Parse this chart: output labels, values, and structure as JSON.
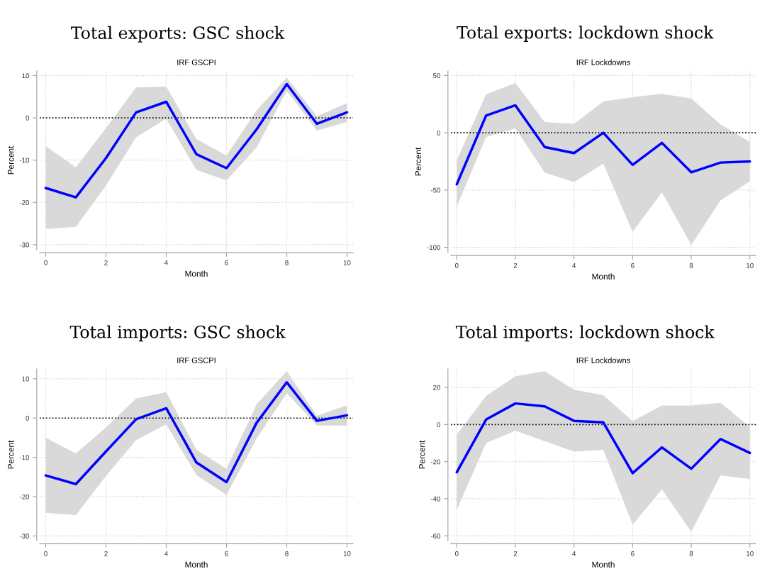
{
  "chart_data": [
    {
      "type": "line",
      "title": "Total exports: GSC shock",
      "subtitle": "IRF GSCPI",
      "xlabel": "Month",
      "ylabel": "Percent",
      "x": [
        0,
        1,
        2,
        3,
        4,
        5,
        6,
        7,
        8,
        9,
        10
      ],
      "xlim": [
        -0.2,
        10.2
      ],
      "ylim": [
        -31.2,
        11.1
      ],
      "xticks": [
        0,
        2,
        4,
        6,
        8,
        10
      ],
      "yticks": [
        -30,
        -20,
        -10,
        0,
        10
      ],
      "grid": true,
      "line_style": "solid",
      "series": [
        {
          "color": "#0000ff",
          "values": [
            -16.6,
            -18.8,
            -9.5,
            1.3,
            3.8,
            -8.6,
            -11.9,
            -2.7,
            8.0,
            -1.4,
            1.3
          ],
          "upper": [
            -6.7,
            -11.7,
            -2.4,
            7.2,
            7.4,
            -5.0,
            -8.9,
            1.8,
            9.5,
            0.4,
            3.5
          ],
          "lower": [
            -26.3,
            -25.8,
            -16.0,
            -4.6,
            -0.2,
            -12.3,
            -14.8,
            -7.0,
            6.4,
            -3.0,
            -1.0
          ]
        }
      ],
      "ref_lines": [
        {
          "axis": "y",
          "value": 0,
          "color": "#000000",
          "line_style": "dotted"
        }
      ]
    },
    {
      "type": "line",
      "title": "Total exports: lockdown shock",
      "subtitle": "IRF Lockdowns",
      "xlabel": "Month",
      "ylabel": "Percent",
      "x": [
        0,
        1,
        2,
        3,
        4,
        5,
        6,
        7,
        8,
        9,
        10
      ],
      "xlim": [
        -0.2,
        10.2
      ],
      "ylim": [
        -104.6,
        54
      ],
      "xticks": [
        0,
        2,
        4,
        6,
        8,
        10
      ],
      "yticks": [
        -100,
        -50,
        0,
        50
      ],
      "grid": true,
      "line_style": "solid",
      "series": [
        {
          "color": "#0000ff",
          "values": [
            -45,
            15,
            24,
            -12.4,
            -17.7,
            0,
            -28,
            -8.8,
            -34.5,
            -26,
            -25
          ],
          "upper": [
            -24,
            33.5,
            43.4,
            9.4,
            7.8,
            27.3,
            31,
            34,
            30,
            7.2,
            -8
          ],
          "lower": [
            -64.5,
            -3.6,
            3.8,
            -34.7,
            -43,
            -27,
            -86.5,
            -52,
            -98,
            -59,
            -42.4
          ]
        }
      ],
      "ref_lines": [
        {
          "axis": "y",
          "value": 0,
          "color": "#000000",
          "line_style": "dotted"
        }
      ]
    },
    {
      "type": "line",
      "title": "Total imports: GSC shock",
      "subtitle": "IRF GSCPI",
      "xlabel": "Month",
      "ylabel": "Percent",
      "x": [
        0,
        1,
        2,
        3,
        4,
        5,
        6,
        7,
        8,
        9,
        10
      ],
      "xlim": [
        -0.2,
        10.2
      ],
      "ylim": [
        -31.2,
        12.5
      ],
      "xticks": [
        0,
        2,
        4,
        6,
        8,
        10
      ],
      "yticks": [
        -30,
        -20,
        -10,
        0,
        10
      ],
      "grid": true,
      "line_style": "solid",
      "series": [
        {
          "color": "#0000ff",
          "values": [
            -14.6,
            -16.8,
            -8.5,
            -0.3,
            2.5,
            -11.3,
            -16.3,
            -1.2,
            9.1,
            -0.7,
            0.7
          ],
          "upper": [
            -5.0,
            -9.0,
            -2.4,
            5.0,
            6.6,
            -8.1,
            -12.9,
            3.5,
            11.9,
            0.6,
            3.3
          ],
          "lower": [
            -24.1,
            -24.7,
            -14.7,
            -5.6,
            -1.6,
            -14.5,
            -19.6,
            -5.2,
            6.3,
            -1.9,
            -1.9
          ]
        }
      ],
      "ref_lines": [
        {
          "axis": "y",
          "value": 0,
          "color": "#000000",
          "line_style": "dotted"
        }
      ]
    },
    {
      "type": "line",
      "title": "Total imports: lockdown shock",
      "subtitle": "IRF Lockdowns",
      "xlabel": "Month",
      "ylabel": "Percent",
      "x": [
        0,
        1,
        2,
        3,
        4,
        5,
        6,
        7,
        8,
        9,
        10
      ],
      "xlim": [
        -0.2,
        10.2
      ],
      "ylim": [
        -62.6,
        30
      ],
      "xticks": [
        0,
        2,
        4,
        6,
        8,
        10
      ],
      "yticks": [
        -60,
        -40,
        -20,
        0,
        20
      ],
      "grid": true,
      "line_style": "solid",
      "series": [
        {
          "color": "#0000ff",
          "values": [
            -25.7,
            2.7,
            11.4,
            9.8,
            2.0,
            1.2,
            -26.2,
            -12.3,
            -23.8,
            -7.8,
            -15.3
          ],
          "upper": [
            -5.5,
            15.5,
            26.1,
            28.8,
            18.8,
            15.8,
            1.9,
            10.3,
            10.3,
            11.7,
            -1.3
          ],
          "lower": [
            -46,
            -10,
            -3.3,
            -8.9,
            -14.6,
            -13.6,
            -54,
            -35,
            -57.8,
            -27.4,
            -29.4
          ]
        }
      ],
      "ref_lines": [
        {
          "axis": "y",
          "value": 0,
          "color": "#000000",
          "line_style": "dotted"
        }
      ]
    }
  ]
}
